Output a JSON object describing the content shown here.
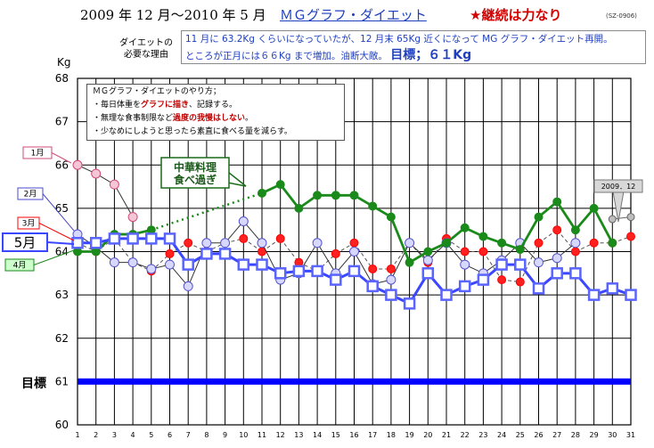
{
  "header": {
    "title": "2009 年 12 月〜2010 年 5 月",
    "subtitle": "ＭＧグラフ・ダイエット",
    "slogan": "★継続は力なり",
    "code": "(SZ-0906)"
  },
  "reason": {
    "label_line1": "ダイエットの",
    "label_line2": "必要な理由",
    "line1": "11 月に 63.2Kg くらいになっていたが、12 月末 65Kg 近くになって MG グラフ・ダイエット再開。",
    "line2": "ところが正月には６６Kg まで増加。油断大敵。",
    "goal": "目標；６１Kg"
  },
  "howto": {
    "heading": "ＭＧグラフ・ダイエットのやり方；",
    "line1_a": "・毎日体重を",
    "line1_b": "グラフに描き",
    "line1_c": "、記録する。",
    "line2_a": "・無理な食事制限など",
    "line2_b": "過度の我慢はしない",
    "line2_c": "。",
    "line3": "・少なめにしようと思ったら素直に食べる量を減らす。"
  },
  "callout": {
    "line1": "中華料理",
    "line2": "食べ過ぎ",
    "date_tag": "2009．12"
  },
  "chart_data": {
    "type": "line",
    "yunit": "Kg",
    "ylim": [
      60,
      68
    ],
    "yticks": [
      60,
      61,
      62,
      63,
      64,
      65,
      66,
      67,
      68
    ],
    "xticks": [
      1,
      2,
      3,
      4,
      5,
      6,
      7,
      8,
      9,
      10,
      11,
      12,
      13,
      14,
      15,
      16,
      17,
      18,
      19,
      20,
      21,
      22,
      23,
      24,
      25,
      26,
      27,
      28,
      29,
      30,
      31
    ],
    "grid": true,
    "goal": {
      "label": "目標",
      "value": 61,
      "color": "#0000ff"
    },
    "colors": {
      "jan": "#d24a7a",
      "feb": "#8a8ae6",
      "mar": "#ff0000",
      "apr": "#1a8a1a",
      "may": "#5a64ff",
      "dec": "#999999"
    },
    "series": [
      {
        "key": "jan",
        "name": "1月",
        "x": [
          1,
          2,
          3,
          4
        ],
        "values": [
          66.0,
          65.8,
          65.55,
          64.8
        ]
      },
      {
        "key": "feb",
        "name": "2月",
        "x": [
          1,
          2,
          3,
          4,
          5,
          6,
          7,
          8,
          9,
          10,
          11,
          12,
          13,
          14,
          15,
          16,
          17,
          18,
          19,
          20,
          21,
          22,
          23,
          24,
          25,
          26,
          27,
          28
        ],
        "values": [
          64.4,
          64.1,
          63.75,
          63.75,
          63.6,
          63.7,
          63.2,
          64.2,
          64.2,
          64.7,
          64.2,
          63.35,
          63.5,
          64.2,
          63.5,
          64.0,
          63.25,
          63.35,
          64.2,
          63.8,
          64.2,
          63.7,
          63.5,
          63.8,
          64.2,
          63.75,
          63.85,
          64.2
        ]
      },
      {
        "key": "mar",
        "name": "3月",
        "x": [
          1,
          2,
          3,
          4,
          5,
          6,
          7,
          8,
          9,
          10,
          11,
          12,
          13,
          14,
          15,
          16,
          17,
          18,
          19,
          20,
          21,
          22,
          23,
          24,
          25,
          26,
          27,
          28,
          29,
          30,
          31
        ],
        "values": [
          64.2,
          64.0,
          64.3,
          63.75,
          63.55,
          63.95,
          64.2,
          64.0,
          64.2,
          64.3,
          64.0,
          64.3,
          63.75,
          63.55,
          63.95,
          64.2,
          63.6,
          63.6,
          64.2,
          63.75,
          64.3,
          64.0,
          64.0,
          63.35,
          63.3,
          64.2,
          64.5,
          64.0,
          64.2,
          64.2,
          64.35
        ]
      },
      {
        "key": "apr",
        "name": "4月",
        "x": [
          1,
          2,
          3,
          4,
          5,
          11,
          12,
          13,
          14,
          15,
          16,
          17,
          18,
          19,
          20,
          21,
          22,
          23,
          24,
          25,
          26,
          27,
          28,
          29,
          30
        ],
        "values": [
          64.0,
          64.0,
          64.4,
          64.4,
          64.5,
          65.35,
          65.55,
          65.0,
          65.3,
          65.3,
          65.3,
          65.05,
          64.8,
          63.75,
          64.0,
          64.2,
          64.55,
          64.35,
          64.2,
          64.05,
          64.8,
          65.15,
          64.5,
          65.0,
          64.2
        ]
      },
      {
        "key": "may",
        "name": "5月",
        "x": [
          1,
          2,
          3,
          4,
          5,
          6,
          7,
          8,
          9,
          10,
          11,
          12,
          13,
          14,
          15,
          16,
          17,
          18,
          19,
          20,
          21,
          22,
          23,
          24,
          25,
          26,
          27,
          28,
          29,
          30,
          31
        ],
        "values": [
          64.2,
          64.2,
          64.3,
          64.3,
          64.3,
          64.3,
          63.7,
          63.95,
          63.95,
          63.7,
          63.7,
          63.5,
          63.55,
          63.55,
          63.35,
          63.55,
          63.2,
          63.0,
          62.8,
          63.5,
          63.0,
          63.2,
          63.35,
          63.7,
          63.7,
          63.15,
          63.5,
          63.5,
          63.0,
          63.15,
          63.0
        ]
      },
      {
        "key": "dec",
        "name": "2009．12",
        "x": [
          30,
          31
        ],
        "values": [
          64.75,
          64.8
        ]
      }
    ]
  }
}
